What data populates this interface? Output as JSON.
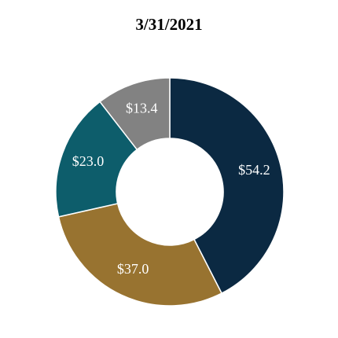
{
  "chart_data": {
    "type": "pie",
    "title": "3/31/2021",
    "donut": true,
    "values": [
      54.2,
      37.0,
      23.0,
      13.4
    ],
    "value_labels": [
      "$54.2",
      "$37.0",
      "$23.0",
      "$13.4"
    ],
    "colors": [
      "#0b2942",
      "#987330",
      "#0d5d6b",
      "#828282"
    ]
  }
}
